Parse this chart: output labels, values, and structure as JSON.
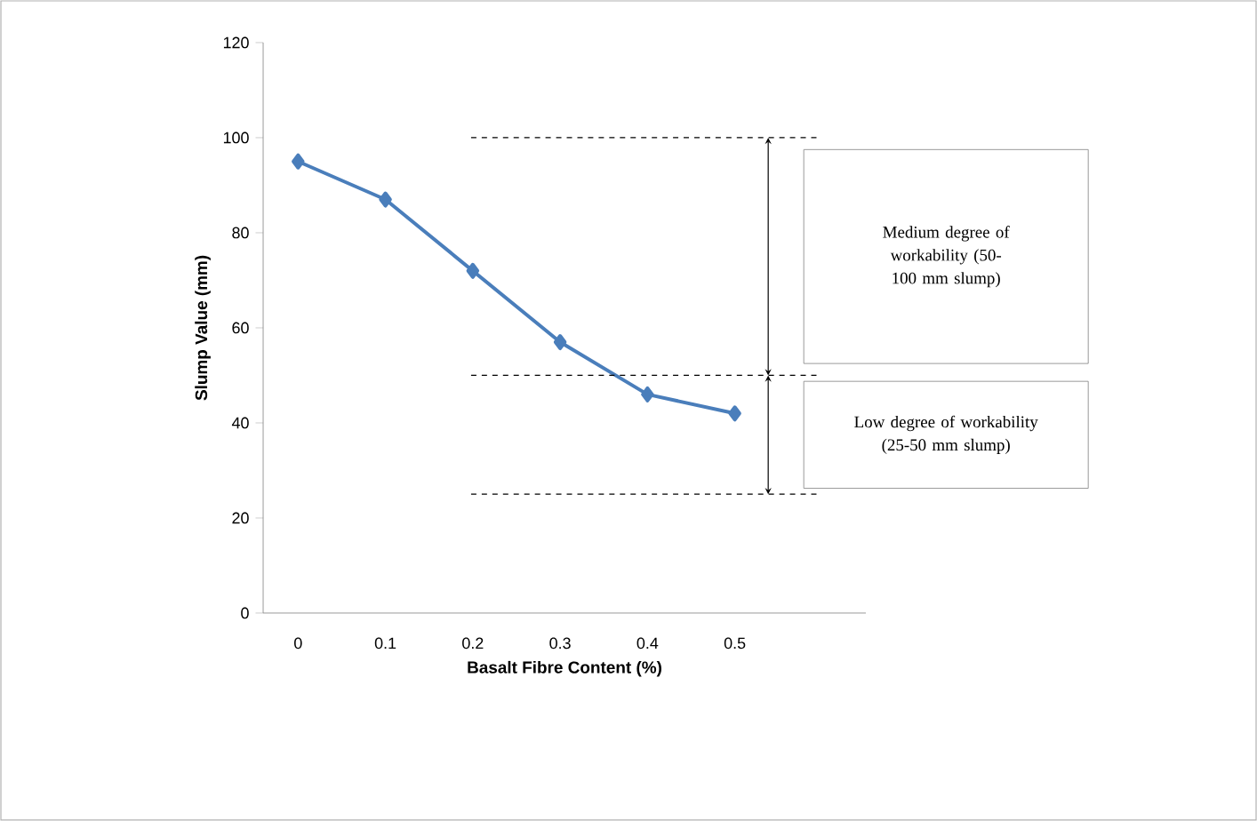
{
  "chart_data": {
    "type": "line",
    "xlabel": "Basalt Fibre Content (%)",
    "ylabel": "Slump Value (mm)",
    "x": [
      0,
      0.1,
      0.2,
      0.3,
      0.4,
      0.5
    ],
    "series": [
      {
        "color": "#4a7ebb",
        "values": [
          95,
          87,
          72,
          57,
          46,
          42
        ]
      }
    ],
    "xlim": [
      -0.04,
      0.65
    ],
    "xticks": [
      0,
      0.1,
      0.2,
      0.3,
      0.4,
      0.5
    ],
    "ylim": [
      0,
      120
    ],
    "yticks": [
      0,
      20,
      40,
      60,
      80,
      100,
      120
    ],
    "marker": "diamond",
    "line_style": "solid",
    "grid": false,
    "ref_lines": [
      {
        "axis": "y",
        "value": 100,
        "color": "#000000",
        "line_style": "dashed"
      },
      {
        "axis": "y",
        "value": 50,
        "color": "#000000",
        "line_style": "dashed"
      },
      {
        "axis": "y",
        "value": 25,
        "color": "#000000",
        "line_style": "dashed"
      }
    ],
    "annotations": [
      "Medium degree of workability (50-100 mm slump)",
      "Low degree of workability (25-50 mm slump)"
    ]
  }
}
